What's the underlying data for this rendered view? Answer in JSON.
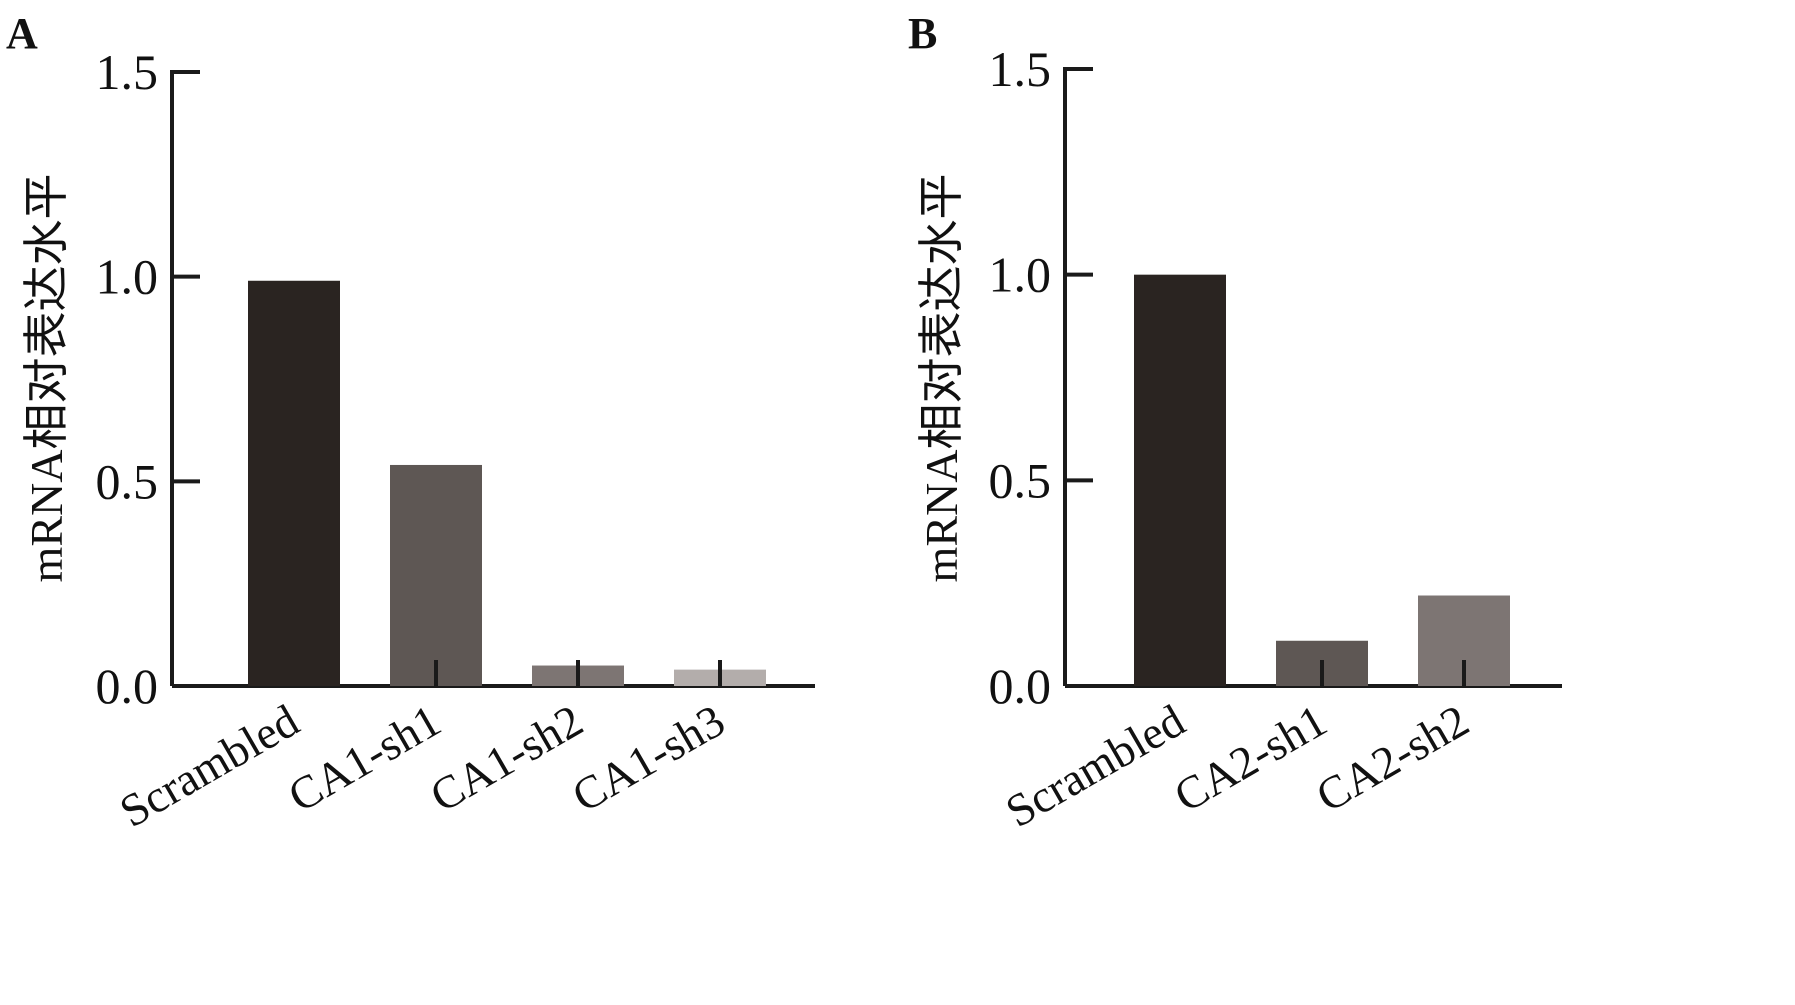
{
  "chart_data": [
    {
      "type": "bar",
      "panel": "A",
      "ylabel": "mRNA相对表达水平",
      "ylim": [
        0,
        1.5
      ],
      "yticks": [
        "0.0",
        "0.5",
        "1.0",
        "1.5"
      ],
      "categories": [
        "Scrambled",
        "CA1-sh1",
        "CA1-sh2",
        "CA1-sh3"
      ],
      "values": [
        0.99,
        0.54,
        0.05,
        0.04
      ],
      "colors": [
        "#2a2421",
        "#5e5754",
        "#7d7573",
        "#b3adab"
      ]
    },
    {
      "type": "bar",
      "panel": "B",
      "ylabel": "mRNA相对表达水平",
      "ylim": [
        0,
        1.5
      ],
      "yticks": [
        "0.0",
        "0.5",
        "1.0",
        "1.5"
      ],
      "categories": [
        "Scrambled",
        "CA2-sh1",
        "CA2-sh2"
      ],
      "values": [
        1.0,
        0.11,
        0.22
      ],
      "colors": [
        "#2a2421",
        "#5e5754",
        "#7d7573"
      ]
    }
  ]
}
